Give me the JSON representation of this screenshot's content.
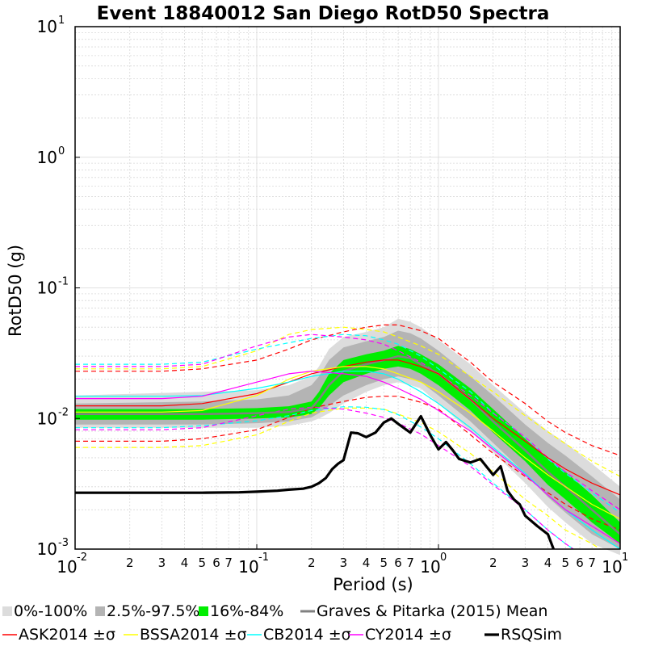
{
  "chart_data": {
    "type": "line",
    "title": "Event 18840012 San Diego RotD50 Spectra",
    "xlabel": "Period (s)",
    "ylabel": "RotD50 (g)",
    "xscale": "log",
    "yscale": "log",
    "xlim": [
      0.01,
      10
    ],
    "ylim": [
      0.001,
      10
    ],
    "grid": true,
    "x_major_ticks": [
      {
        "base": "10",
        "exp": "-2"
      },
      {
        "base": "10",
        "exp": "-1"
      },
      {
        "base": "10",
        "exp": "0"
      },
      {
        "base": "10",
        "exp": "1"
      }
    ],
    "y_major_ticks": [
      {
        "base": "10",
        "exp": "-3"
      },
      {
        "base": "10",
        "exp": "-2"
      },
      {
        "base": "10",
        "exp": "-1"
      },
      {
        "base": "10",
        "exp": "0"
      },
      {
        "base": "10",
        "exp": "1"
      }
    ],
    "x_minor_labels": [
      "2",
      "3",
      "4",
      "5",
      "6",
      "7"
    ],
    "bands": [
      {
        "name": "0%-100%",
        "color": "#dcdcdc",
        "x": [
          0.01,
          0.05,
          0.1,
          0.15,
          0.2,
          0.22,
          0.25,
          0.3,
          0.4,
          0.5,
          0.6,
          0.7,
          0.8,
          1,
          1.5,
          2,
          3,
          4,
          5,
          7,
          10
        ],
        "lo": [
          0.0085,
          0.0085,
          0.0085,
          0.0088,
          0.0095,
          0.01,
          0.011,
          0.013,
          0.016,
          0.018,
          0.019,
          0.018,
          0.017,
          0.013,
          0.008,
          0.0055,
          0.0032,
          0.0021,
          0.0016,
          0.0011,
          0.0009
        ],
        "hi": [
          0.015,
          0.016,
          0.0165,
          0.018,
          0.021,
          0.025,
          0.034,
          0.042,
          0.046,
          0.05,
          0.058,
          0.055,
          0.05,
          0.04,
          0.026,
          0.018,
          0.011,
          0.008,
          0.0065,
          0.0045,
          0.003
        ]
      },
      {
        "name": "2.5%-97.5%",
        "color": "#b4b4b4",
        "x": [
          0.01,
          0.05,
          0.1,
          0.15,
          0.2,
          0.22,
          0.25,
          0.3,
          0.4,
          0.5,
          0.6,
          0.7,
          0.8,
          1,
          1.5,
          2,
          3,
          4,
          5,
          7,
          10
        ],
        "lo": [
          0.009,
          0.009,
          0.0092,
          0.0095,
          0.0102,
          0.011,
          0.0125,
          0.015,
          0.018,
          0.02,
          0.021,
          0.02,
          0.019,
          0.015,
          0.0095,
          0.0065,
          0.0038,
          0.0025,
          0.0019,
          0.0013,
          0.001
        ],
        "hi": [
          0.013,
          0.0135,
          0.014,
          0.015,
          0.018,
          0.021,
          0.028,
          0.035,
          0.039,
          0.042,
          0.047,
          0.045,
          0.041,
          0.033,
          0.021,
          0.015,
          0.009,
          0.0065,
          0.0052,
          0.0036,
          0.0024
        ]
      },
      {
        "name": "16%-84%",
        "color": "#00ee00",
        "x": [
          0.01,
          0.05,
          0.1,
          0.15,
          0.2,
          0.22,
          0.25,
          0.3,
          0.4,
          0.5,
          0.6,
          0.7,
          0.8,
          1,
          1.5,
          2,
          3,
          4,
          5,
          7,
          10
        ],
        "lo": [
          0.0098,
          0.0098,
          0.01,
          0.0102,
          0.0108,
          0.012,
          0.015,
          0.019,
          0.022,
          0.024,
          0.025,
          0.024,
          0.022,
          0.018,
          0.0115,
          0.0078,
          0.0047,
          0.0031,
          0.0024,
          0.0016,
          0.0011
        ],
        "hi": [
          0.0118,
          0.0118,
          0.012,
          0.0124,
          0.0135,
          0.016,
          0.022,
          0.028,
          0.031,
          0.033,
          0.036,
          0.034,
          0.031,
          0.026,
          0.017,
          0.0118,
          0.007,
          0.0049,
          0.0039,
          0.0026,
          0.0016
        ]
      }
    ],
    "series": [
      {
        "name": "Graves & Pitarka (2015) Mean",
        "color": "#808080",
        "width": 2.5,
        "x": [
          0.01,
          0.05,
          0.1,
          0.15,
          0.2,
          0.22,
          0.25,
          0.3,
          0.4,
          0.5,
          0.6,
          0.7,
          0.8,
          1,
          1.5,
          2,
          3,
          4,
          5,
          7,
          10
        ],
        "y": [
          0.0108,
          0.0108,
          0.011,
          0.0112,
          0.012,
          0.014,
          0.018,
          0.023,
          0.026,
          0.028,
          0.03,
          0.029,
          0.026,
          0.022,
          0.014,
          0.0095,
          0.0057,
          0.0039,
          0.003,
          0.002,
          0.0013
        ]
      },
      {
        "name": "ASK2014 ±σ",
        "color": "#ff0000",
        "width": 1.2,
        "x": [
          0.01,
          0.03,
          0.05,
          0.1,
          0.15,
          0.2,
          0.3,
          0.4,
          0.5,
          0.6,
          0.8,
          1,
          1.5,
          2,
          3,
          4,
          5,
          7,
          10
        ],
        "y": [
          0.0125,
          0.0125,
          0.013,
          0.0155,
          0.019,
          0.022,
          0.025,
          0.027,
          0.028,
          0.028,
          0.025,
          0.022,
          0.014,
          0.01,
          0.0067,
          0.005,
          0.0041,
          0.0032,
          0.0026
        ],
        "dashed": [
          {
            "y": [
              0.023,
              0.023,
              0.024,
              0.028,
              0.034,
              0.04,
              0.046,
              0.05,
              0.052,
              0.052,
              0.047,
              0.041,
              0.027,
              0.019,
              0.013,
              0.0095,
              0.0078,
              0.0062,
              0.0052
            ]
          },
          {
            "y": [
              0.0067,
              0.0067,
              0.007,
              0.0082,
              0.0102,
              0.012,
              0.0135,
              0.0145,
              0.0148,
              0.0148,
              0.0133,
              0.0118,
              0.0075,
              0.0054,
              0.0036,
              0.0027,
              0.0022,
              0.0017,
              0.0014
            ]
          }
        ]
      },
      {
        "name": "BSSA2014 ±σ",
        "color": "#ffff00",
        "width": 1.2,
        "x": [
          0.01,
          0.03,
          0.05,
          0.1,
          0.15,
          0.2,
          0.3,
          0.4,
          0.5,
          0.6,
          0.8,
          1,
          1.5,
          2,
          3,
          4,
          5,
          7,
          10
        ],
        "y": [
          0.0112,
          0.0112,
          0.0115,
          0.015,
          0.02,
          0.023,
          0.025,
          0.025,
          0.024,
          0.022,
          0.019,
          0.016,
          0.011,
          0.008,
          0.005,
          0.0037,
          0.003,
          0.0022,
          0.0017
        ],
        "dashed": [
          {
            "y": [
              0.024,
              0.024,
              0.025,
              0.033,
              0.044,
              0.048,
              0.05,
              0.048,
              0.046,
              0.042,
              0.036,
              0.031,
              0.021,
              0.016,
              0.0105,
              0.0079,
              0.0064,
              0.0047,
              0.0036
            ]
          },
          {
            "y": [
              0.006,
              0.006,
              0.0062,
              0.0075,
              0.0095,
              0.011,
              0.012,
              0.012,
              0.0118,
              0.0108,
              0.0093,
              0.0079,
              0.0054,
              0.0039,
              0.0024,
              0.0018,
              0.0014,
              0.0011,
              0.0008
            ]
          }
        ]
      },
      {
        "name": "CB2014 ±σ",
        "color": "#00ffff",
        "width": 1.2,
        "x": [
          0.01,
          0.03,
          0.05,
          0.1,
          0.15,
          0.2,
          0.3,
          0.4,
          0.5,
          0.6,
          0.8,
          1,
          1.5,
          2,
          3,
          4,
          5,
          7,
          10
        ],
        "y": [
          0.0148,
          0.0148,
          0.015,
          0.017,
          0.019,
          0.021,
          0.023,
          0.023,
          0.022,
          0.02,
          0.016,
          0.013,
          0.0085,
          0.006,
          0.0038,
          0.0026,
          0.002,
          0.0014,
          0.001
        ],
        "dashed": [
          {
            "y": [
              0.026,
              0.026,
              0.027,
              0.034,
              0.038,
              0.041,
              0.044,
              0.043,
              0.04,
              0.037,
              0.03,
              0.024,
              0.016,
              0.011,
              0.0072,
              0.0049,
              0.0038,
              0.0027,
              0.0019
            ]
          },
          {
            "y": [
              0.0085,
              0.0085,
              0.0088,
              0.0096,
              0.0105,
              0.0115,
              0.0123,
              0.0122,
              0.0117,
              0.0107,
              0.0086,
              0.007,
              0.0045,
              0.0032,
              0.002,
              0.0014,
              0.0011,
              0.0008,
              0.0006
            ]
          }
        ]
      },
      {
        "name": "CY2014 ±σ",
        "color": "#ff00ff",
        "width": 1.2,
        "x": [
          0.01,
          0.03,
          0.05,
          0.1,
          0.15,
          0.2,
          0.3,
          0.4,
          0.5,
          0.6,
          0.8,
          1,
          1.5,
          2,
          3,
          4,
          5,
          7,
          10
        ],
        "y": [
          0.0142,
          0.0142,
          0.0148,
          0.019,
          0.022,
          0.023,
          0.022,
          0.021,
          0.019,
          0.017,
          0.014,
          0.0115,
          0.008,
          0.0058,
          0.0037,
          0.0026,
          0.002,
          0.0015,
          0.0011
        ],
        "dashed": [
          {
            "y": [
              0.025,
              0.025,
              0.026,
              0.036,
              0.042,
              0.044,
              0.042,
              0.04,
              0.037,
              0.033,
              0.027,
              0.022,
              0.015,
              0.011,
              0.0072,
              0.005,
              0.0039,
              0.0028,
              0.002
            ]
          },
          {
            "y": [
              0.0082,
              0.0082,
              0.0085,
              0.0105,
              0.0118,
              0.0122,
              0.0118,
              0.011,
              0.0102,
              0.0092,
              0.0076,
              0.0062,
              0.0043,
              0.0031,
              0.002,
              0.0014,
              0.0011,
              0.0008,
              0.0006
            ]
          }
        ]
      },
      {
        "name": "RSQSim",
        "color": "#000000",
        "width": 3.2,
        "x": [
          0.01,
          0.03,
          0.05,
          0.08,
          0.1,
          0.13,
          0.15,
          0.18,
          0.2,
          0.22,
          0.24,
          0.26,
          0.28,
          0.3,
          0.33,
          0.36,
          0.4,
          0.45,
          0.5,
          0.55,
          0.6,
          0.7,
          0.8,
          0.9,
          1.0,
          1.1,
          1.2,
          1.3,
          1.5,
          1.7,
          2.0,
          2.2,
          2.4,
          2.6,
          2.8,
          3.0,
          3.5,
          4.0,
          4.3
        ],
        "y": [
          0.0027,
          0.0027,
          0.0027,
          0.00272,
          0.00275,
          0.0028,
          0.00285,
          0.0029,
          0.003,
          0.0032,
          0.0035,
          0.0041,
          0.0045,
          0.0048,
          0.0078,
          0.0077,
          0.0072,
          0.0078,
          0.0093,
          0.01,
          0.0091,
          0.0078,
          0.0104,
          0.0075,
          0.0058,
          0.0066,
          0.0057,
          0.0049,
          0.0046,
          0.0049,
          0.0037,
          0.0043,
          0.0028,
          0.0024,
          0.0022,
          0.0018,
          0.0015,
          0.0013,
          0.001
        ]
      }
    ],
    "legend": {
      "placement": "bottom",
      "row1": [
        "0%-100%",
        "2.5%-97.5%",
        "16%-84%",
        "Graves & Pitarka (2015) Mean"
      ],
      "row2": [
        "ASK2014 ±σ",
        "BSSA2014 ±σ",
        "CB2014 ±σ",
        "CY2014 ±σ",
        "RSQSim"
      ]
    }
  }
}
